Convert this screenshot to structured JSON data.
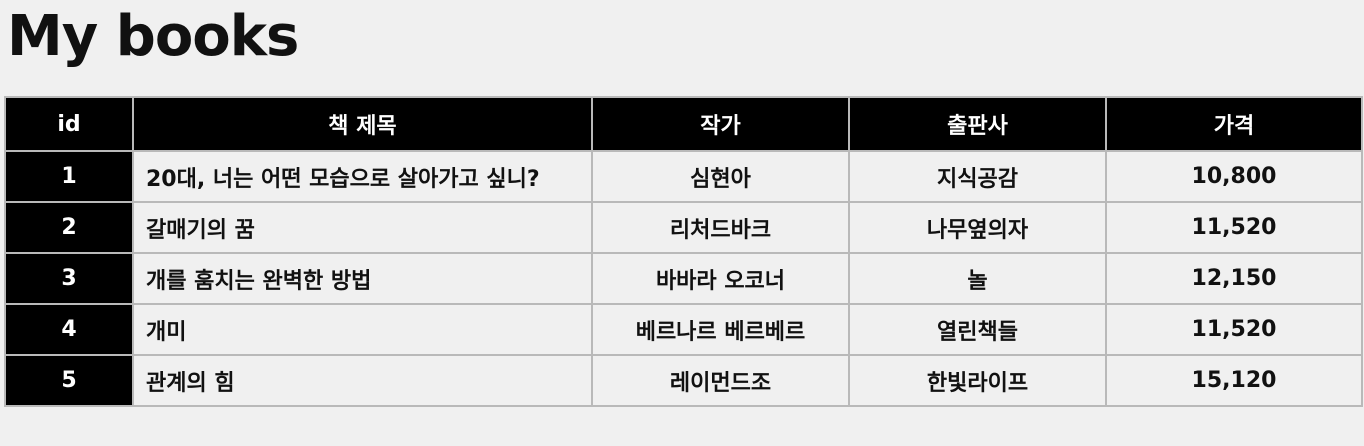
{
  "page": {
    "title": "My books"
  },
  "table": {
    "headers": [
      "id",
      "책 제목",
      "작가",
      "출판사",
      "가격"
    ],
    "rows": [
      {
        "id": "1",
        "title": "20대, 너는 어떤 모습으로 살아가고 싶니?",
        "author": "심현아",
        "publisher": "지식공감",
        "price": "10,800"
      },
      {
        "id": "2",
        "title": "갈매기의 꿈",
        "author": "리처드바크",
        "publisher": "나무옆의자",
        "price": "11,520"
      },
      {
        "id": "3",
        "title": "개를 훔치는 완벽한 방법",
        "author": "바바라 오코너",
        "publisher": "놀",
        "price": "12,150"
      },
      {
        "id": "4",
        "title": "개미",
        "author": "베르나르 베르베르",
        "publisher": "열린책들",
        "price": "11,520"
      },
      {
        "id": "5",
        "title": "관계의 힘",
        "author": "레이먼드조",
        "publisher": "한빛라이프",
        "price": "15,120"
      }
    ]
  }
}
